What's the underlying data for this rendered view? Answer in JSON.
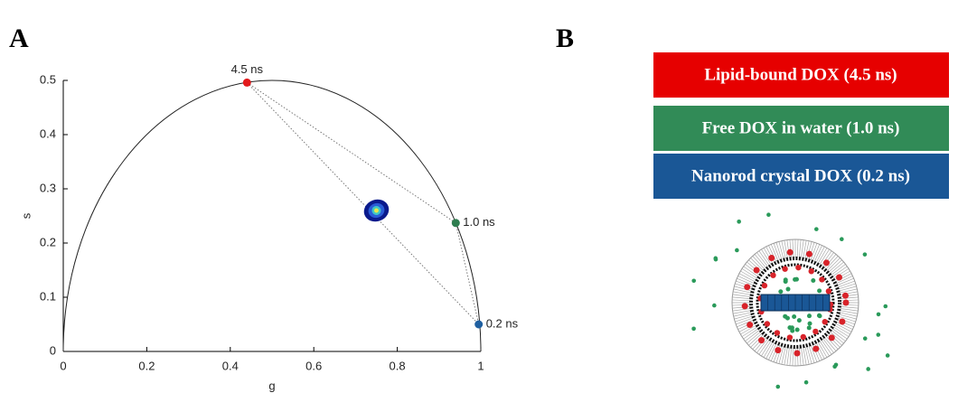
{
  "panel_labels": [
    "A",
    "B"
  ],
  "chart_data": {
    "type": "scatter",
    "xlabel": "g",
    "ylabel": "s",
    "x": [
      0.44,
      0.94,
      0.995
    ],
    "values": [
      0.496,
      0.237,
      0.05
    ],
    "point_labels": [
      "4.5 ns",
      "1.0 ns",
      "0.2 ns"
    ],
    "colors": [
      "#e31a1c",
      "#2e7d4f",
      "#1f5fa0"
    ],
    "cluster": {
      "x": 0.75,
      "y": 0.26
    },
    "xlim": [
      0,
      1
    ],
    "ylim": [
      0,
      0.5
    ],
    "xticks": [
      0,
      0.2,
      0.4,
      0.6,
      0.8,
      1
    ],
    "yticks": [
      0,
      0.1,
      0.2,
      0.3,
      0.4,
      0.5
    ]
  },
  "diagram": {
    "boxes": [
      {
        "label": "Lipid-bound DOX (4.5 ns)",
        "color": "#e60000"
      },
      {
        "label": "Free DOX in water (1.0 ns)",
        "color": "#318b57"
      },
      {
        "label": "Nanorod crystal DOX (0.2 ns)",
        "color": "#1a5796"
      }
    ]
  }
}
